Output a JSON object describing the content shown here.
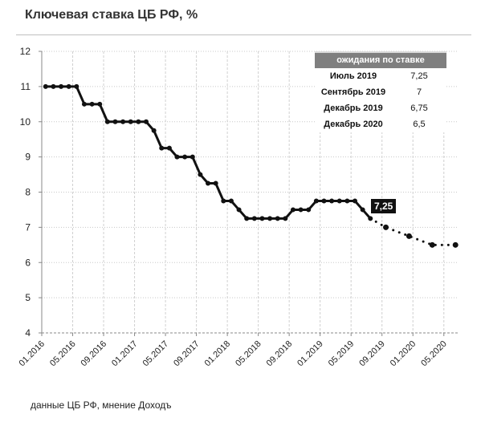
{
  "title": "Ключевая ставка ЦБ РФ, %",
  "footer": "данные ЦБ РФ, мнение Доходъ",
  "callout": "7,25",
  "table": {
    "header": "ожидания по ставке",
    "rows": [
      {
        "period": "Июль 2019",
        "value": "7,25"
      },
      {
        "period": "Сентябрь 2019",
        "value": "7"
      },
      {
        "period": "Декабрь 2019",
        "value": "6,75"
      },
      {
        "period": "Декабрь 2020",
        "value": "6,5"
      }
    ]
  },
  "chart_data": {
    "type": "line",
    "title": "Ключевая ставка ЦБ РФ, %",
    "ylim": [
      4,
      12
    ],
    "yticks": [
      "4",
      "5",
      "6",
      "7",
      "8",
      "9",
      "10",
      "11",
      "12"
    ],
    "xticks": [
      "01.2016",
      "05.2016",
      "09.2016",
      "01.2017",
      "05.2017",
      "09.2017",
      "01.2018",
      "05.2018",
      "09.2018",
      "01.2019",
      "05.2019",
      "09.2019",
      "01.2020",
      "05.2020"
    ],
    "grid": true,
    "series": [
      {
        "name": "Ключевая ставка",
        "style": "solid",
        "start": "01.2016",
        "step_months": 1,
        "values": [
          11,
          11,
          11,
          11,
          11,
          10.5,
          10.5,
          10.5,
          10,
          10,
          10,
          10,
          10,
          10,
          9.75,
          9.25,
          9.25,
          9,
          9,
          9,
          8.5,
          8.25,
          8.25,
          7.75,
          7.75,
          7.5,
          7.25,
          7.25,
          7.25,
          7.25,
          7.25,
          7.25,
          7.5,
          7.5,
          7.5,
          7.75,
          7.75,
          7.75,
          7.75,
          7.75,
          7.75,
          7.5,
          7.25
        ]
      },
      {
        "name": "Прогноз",
        "style": "dotted",
        "points": [
          {
            "month_index": 42,
            "value": 7.25
          },
          {
            "month_index": 44,
            "value": 7
          },
          {
            "month_index": 47,
            "value": 6.75
          },
          {
            "month_index": 50,
            "value": 6.5
          },
          {
            "month_index": 53,
            "value": 6.5
          }
        ]
      }
    ]
  }
}
